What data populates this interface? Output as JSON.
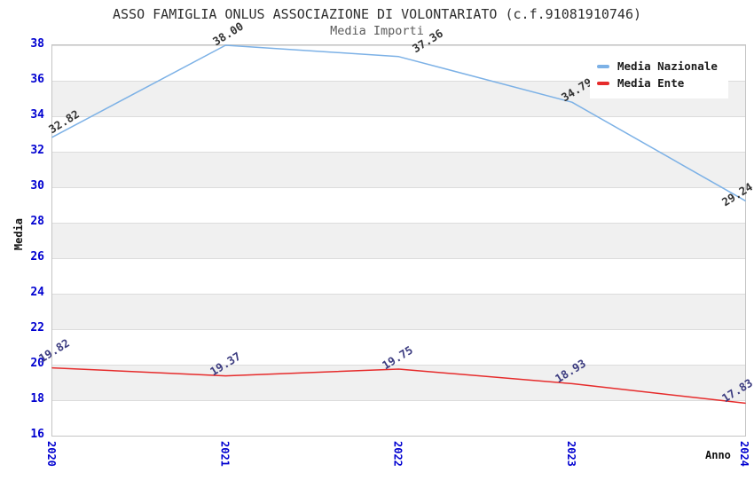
{
  "title": "ASSO FAMIGLIA ONLUS ASSOCIAZIONE DI VOLONTARIATO (c.f.91081910746)",
  "subtitle": "Media Importi",
  "chart_data": {
    "type": "line",
    "x": [
      2020,
      2021,
      2022,
      2023,
      2024
    ],
    "x_ticklabels": [
      "2020",
      "2021",
      "2022",
      "2023",
      "2024"
    ],
    "y_ticklabels": [
      "38",
      "36",
      "34",
      "32",
      "30",
      "28",
      "26",
      "24",
      "22",
      "20",
      "18",
      "16"
    ],
    "series": [
      {
        "name": "Media Nazionale",
        "color": "#7cb1e6",
        "values": [
          32.82,
          38.0,
          37.36,
          34.79,
          29.24
        ],
        "point_labels": [
          "32.82",
          "38.00",
          "37.36",
          "34.79",
          "29.24"
        ],
        "label_color": "#333333"
      },
      {
        "name": "Media Ente",
        "color": "#e62b2b",
        "values": [
          19.82,
          19.37,
          19.75,
          18.93,
          17.83
        ],
        "point_labels": [
          "19.82",
          "19.37",
          "19.75",
          "18.93",
          "17.83"
        ],
        "label_color": "#3c3c80"
      }
    ],
    "xlabel": "Anno",
    "ylabel": "Media",
    "ylim": [
      16,
      38
    ],
    "ytick_step": 2,
    "legend_position": "top-right",
    "grid": "horizontal-bands",
    "tick_color": "#0000d0",
    "band_colors": [
      "#ffffff",
      "#f0f0f0"
    ]
  }
}
